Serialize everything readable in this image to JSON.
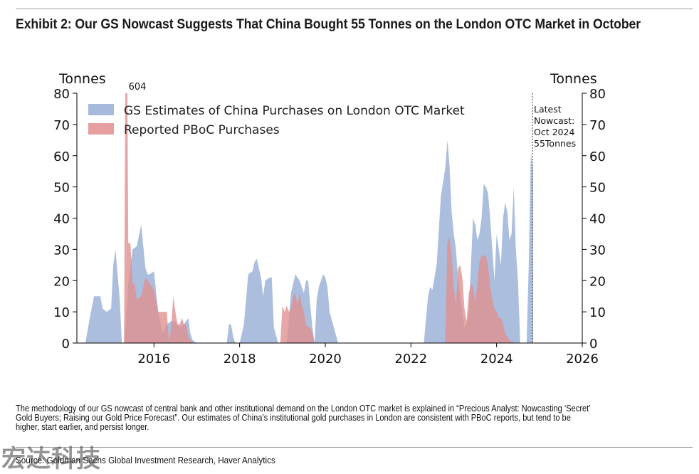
{
  "exhibit": {
    "title": "Exhibit 2: Our GS Nowcast Suggests That China Bought 55 Tonnes on the London OTC Market in October",
    "notes": "The methodology of our GS nowcast of central bank and other institutional demand on the London OTC market is explained in “Precious Analyst: Nowcasting ‘Secret’ Gold Buyers; Raising our Gold Price Forecast”. Our estimates of China’s institutional gold purchases in London are consistent with PBoC reports, but tend to be higher, start earlier, and persist longer.",
    "source": "Source: Goldman Sachs Global Investment Research, Haver Analytics",
    "watermark": "宏达科技"
  },
  "chart_data": {
    "type": "area",
    "ylabel_left": "Tonnes",
    "ylabel_right": "Tonnes",
    "ylim": [
      0,
      80
    ],
    "yticks": [
      0,
      10,
      20,
      30,
      40,
      50,
      60,
      70,
      80
    ],
    "xlim": [
      2014.2,
      2026
    ],
    "xticks": [
      2016,
      2018,
      2020,
      2022,
      2024,
      2026
    ],
    "legend_position": "top-left",
    "grid": false,
    "annotations": {
      "spike_label": "604",
      "nowcast_lines": [
        "Latest",
        "Nowcast:",
        "Oct 2024",
        "55Tonnes"
      ]
    },
    "series": [
      {
        "name": "GS Estimates of China Purchases on London OTC Market",
        "color": "#9db3d7",
        "x": [
          2014.4,
          2014.5,
          2014.6,
          2014.75,
          2014.8,
          2014.9,
          2015.0,
          2015.05,
          2015.1,
          2015.2,
          2015.25,
          2015.3,
          2015.35,
          2015.4,
          2015.5,
          2015.6,
          2015.7,
          2015.8,
          2015.85,
          2015.9,
          2016.0,
          2016.1,
          2016.2,
          2016.3,
          2016.4,
          2016.5,
          2016.6,
          2016.7,
          2016.75,
          2016.8,
          2016.85,
          2016.9,
          2017.0,
          2017.5,
          2017.7,
          2017.75,
          2017.8,
          2017.85,
          2017.9,
          2018.0,
          2018.1,
          2018.2,
          2018.3,
          2018.35,
          2018.4,
          2018.5,
          2018.55,
          2018.6,
          2018.7,
          2018.75,
          2018.8,
          2018.9,
          2019.0,
          2019.1,
          2019.2,
          2019.3,
          2019.35,
          2019.4,
          2019.5,
          2019.55,
          2019.6,
          2019.65,
          2019.7,
          2019.75,
          2019.8,
          2019.85,
          2019.9,
          2019.95,
          2020.0,
          2020.05,
          2020.1,
          2020.2,
          2020.3,
          2022.3,
          2022.4,
          2022.45,
          2022.5,
          2022.6,
          2022.7,
          2022.8,
          2022.85,
          2022.9,
          2022.95,
          2023.0,
          2023.05,
          2023.1,
          2023.15,
          2023.2,
          2023.25,
          2023.3,
          2023.35,
          2023.4,
          2023.45,
          2023.5,
          2023.55,
          2023.6,
          2023.65,
          2023.7,
          2023.75,
          2023.8,
          2023.85,
          2023.9,
          2023.95,
          2024.0,
          2024.05,
          2024.1,
          2024.15,
          2024.2,
          2024.25,
          2024.3,
          2024.35,
          2024.4,
          2024.45,
          2024.5,
          2024.55,
          2024.6,
          2024.65,
          2024.7,
          2024.75,
          2024.8,
          2024.85
        ],
        "values": [
          0,
          8,
          15,
          15,
          11,
          10,
          11,
          25,
          30,
          14,
          0,
          0,
          8,
          19,
          30,
          31,
          38,
          24,
          22,
          22,
          23,
          10,
          3,
          6,
          7,
          7,
          5,
          6,
          7,
          8,
          3,
          1,
          0,
          0,
          0,
          6,
          6,
          2,
          0,
          0,
          6,
          22,
          23,
          26,
          27,
          21,
          15,
          20,
          21,
          21,
          5,
          0,
          0,
          0,
          16,
          22,
          21,
          20,
          16,
          20,
          20,
          12,
          5,
          0,
          14,
          18,
          20,
          22,
          21,
          18,
          10,
          5,
          0,
          0,
          15,
          18,
          17,
          25,
          47,
          56,
          65,
          57,
          42,
          35,
          30,
          21,
          15,
          10,
          5,
          6,
          10,
          25,
          40,
          38,
          33,
          35,
          40,
          51,
          50,
          48,
          40,
          30,
          20,
          35,
          30,
          25,
          40,
          45,
          42,
          33,
          35,
          50,
          30,
          20,
          0,
          0,
          0,
          0,
          25,
          61,
          55
        ]
      },
      {
        "name": "Reported PBoC Purchases",
        "color": "#e08e8e",
        "x": [
          2015.3,
          2015.33,
          2015.35,
          2015.38,
          2015.4,
          2015.45,
          2015.5,
          2015.55,
          2015.6,
          2015.7,
          2015.8,
          2015.9,
          2016.0,
          2016.1,
          2016.15,
          2016.2,
          2016.3,
          2016.35,
          2016.4,
          2016.45,
          2016.5,
          2016.55,
          2016.6,
          2016.65,
          2016.7,
          2016.75,
          2016.8,
          2016.85,
          2016.9,
          2017.0,
          2018.95,
          2019.0,
          2019.05,
          2019.1,
          2019.15,
          2019.2,
          2019.25,
          2019.3,
          2019.35,
          2019.4,
          2019.45,
          2019.5,
          2019.55,
          2019.6,
          2019.65,
          2019.7,
          2019.75,
          2019.8,
          2019.85,
          2019.9,
          2019.95,
          2020.0,
          2022.8,
          2022.85,
          2022.9,
          2022.95,
          2023.0,
          2023.05,
          2023.1,
          2023.15,
          2023.2,
          2023.25,
          2023.3,
          2023.35,
          2023.4,
          2023.45,
          2023.5,
          2023.55,
          2023.6,
          2023.65,
          2023.7,
          2023.75,
          2023.8,
          2023.85,
          2023.9,
          2023.95,
          2024.0,
          2024.05,
          2024.1,
          2024.15,
          2024.2,
          2024.3,
          2024.4
        ],
        "values": [
          0,
          80,
          80,
          80,
          32,
          32,
          19,
          19,
          14,
          15,
          21,
          19,
          17,
          10,
          10,
          10,
          10,
          0,
          5,
          15,
          10,
          6,
          6,
          8,
          6,
          6,
          2,
          1,
          0,
          0,
          0,
          12,
          10,
          12,
          10,
          11,
          15,
          16,
          12,
          16,
          12,
          10,
          6,
          5,
          5,
          3,
          0,
          0,
          0,
          0,
          0,
          0,
          0,
          32,
          34,
          28,
          18,
          12,
          24,
          25,
          21,
          11,
          7,
          16,
          19,
          18,
          13,
          19,
          26,
          28,
          28,
          28,
          25,
          18,
          14,
          11,
          10,
          8,
          8,
          6,
          3,
          1,
          0
        ]
      }
    ]
  }
}
